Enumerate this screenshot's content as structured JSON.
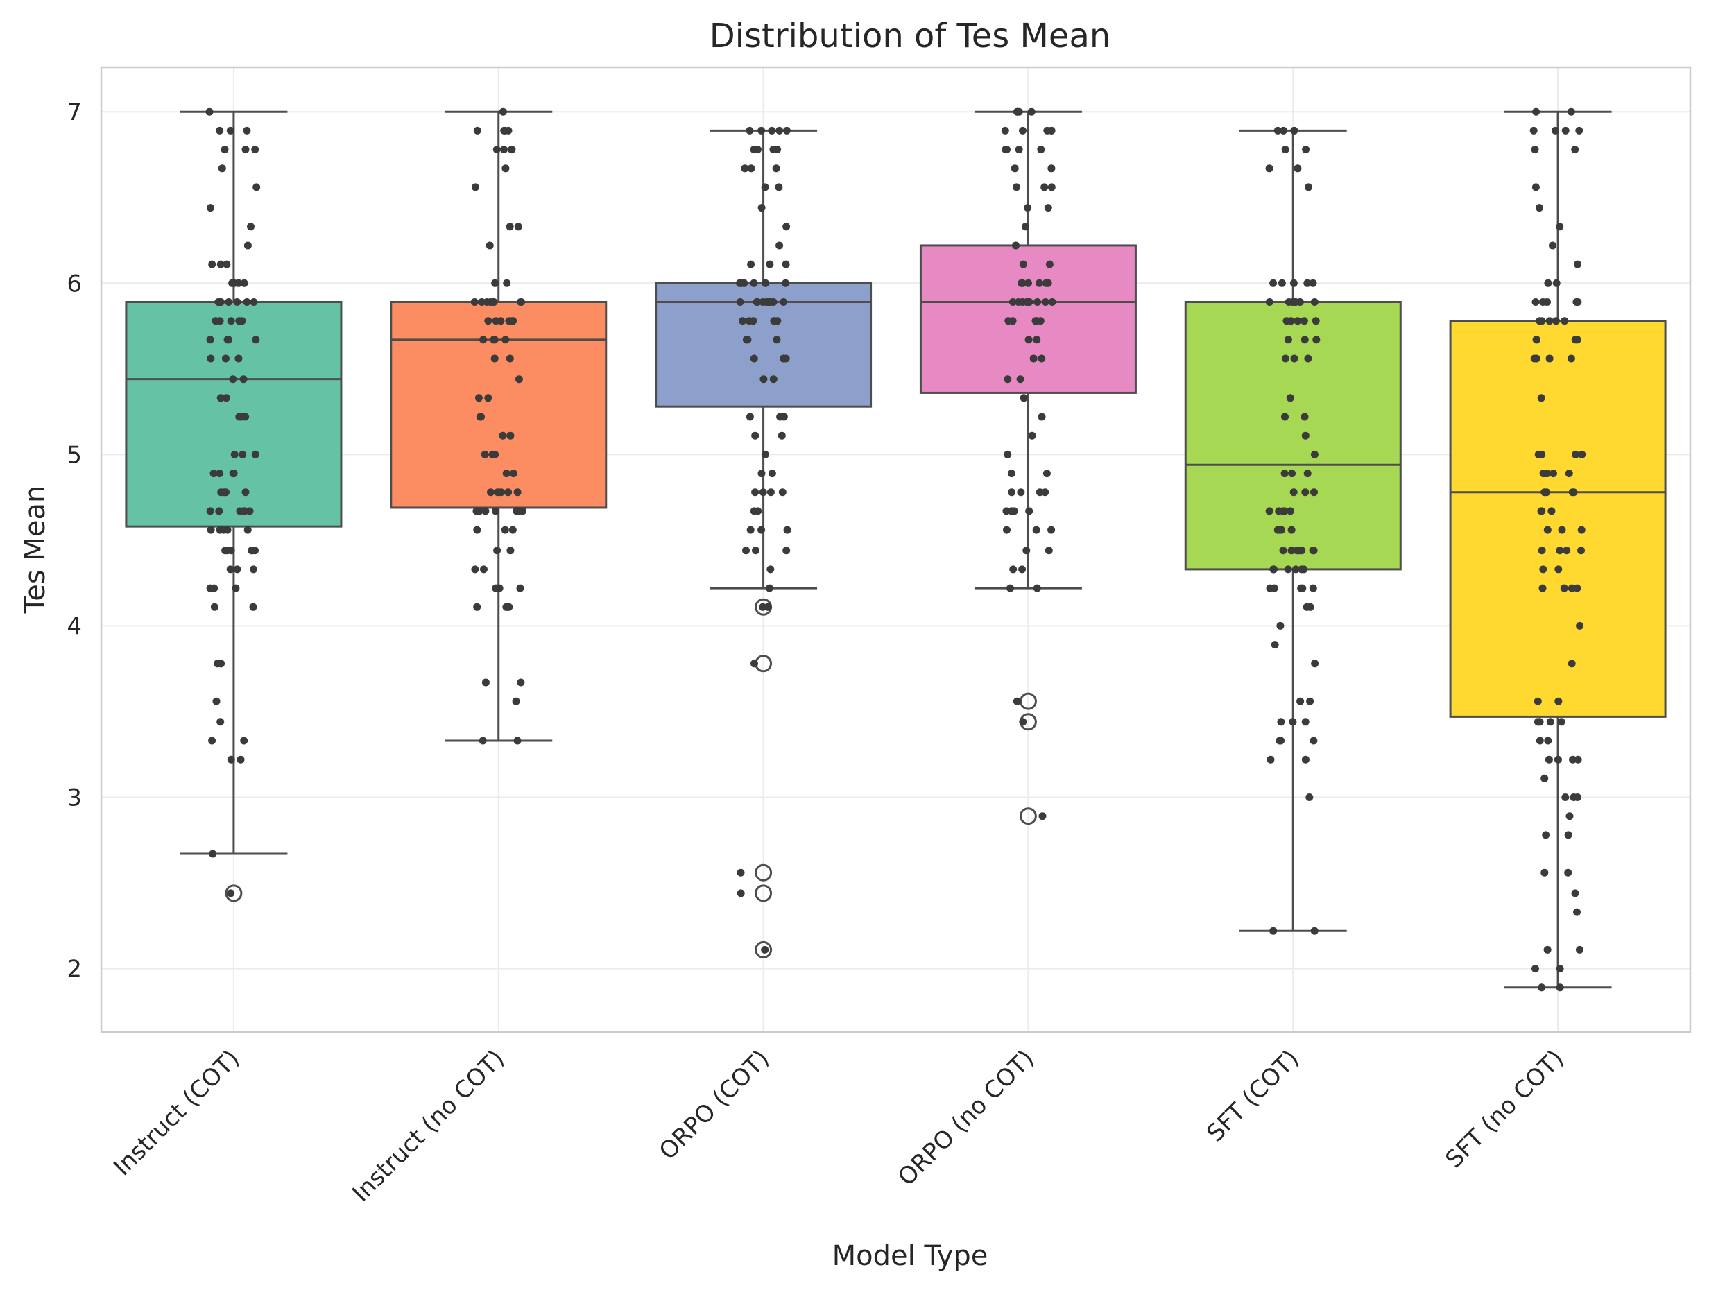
{
  "chart_data": {
    "type": "box",
    "title": "Distribution of Tes Mean",
    "xlabel": "Model Type",
    "ylabel": "Tes Mean",
    "ylim": [
      1.63,
      7.26
    ],
    "yticks": [
      2,
      3,
      4,
      5,
      6,
      7
    ],
    "grid": true,
    "legend": "none",
    "box_edge_color": "#4d4d4d",
    "point_color": "#3b3b3b",
    "categories": [
      "Instruct (COT)",
      "Instruct (no COT)",
      "ORPO (COT)",
      "ORPO (no COT)",
      "SFT (COT)",
      "SFT (no COT)"
    ],
    "series": [
      {
        "category": "Instruct (COT)",
        "color": "#66c2a5",
        "whisker_low": 2.67,
        "q1": 4.58,
        "median": 5.44,
        "q3": 5.89,
        "whisker_high": 7.0,
        "outliers": [
          2.44
        ],
        "points": [
          7.0,
          6.89,
          6.89,
          6.89,
          6.78,
          6.78,
          6.78,
          6.67,
          6.56,
          6.44,
          6.33,
          6.22,
          6.11,
          6.11,
          6.11,
          6.0,
          6.0,
          6.0,
          6.0,
          5.89,
          5.89,
          5.89,
          5.89,
          5.89,
          5.89,
          5.89,
          5.89,
          5.78,
          5.78,
          5.78,
          5.78,
          5.78,
          5.67,
          5.67,
          5.67,
          5.67,
          5.56,
          5.56,
          5.56,
          5.44,
          5.44,
          5.33,
          5.33,
          5.22,
          5.22,
          5.22,
          5.0,
          5.0,
          5.0,
          4.89,
          4.89,
          4.89,
          4.89,
          4.78,
          4.78,
          4.78,
          4.78,
          4.67,
          4.67,
          4.67,
          4.67,
          4.67,
          4.67,
          4.67,
          4.56,
          4.56,
          4.56,
          4.56,
          4.56,
          4.44,
          4.44,
          4.44,
          4.44,
          4.44,
          4.44,
          4.33,
          4.33,
          4.33,
          4.22,
          4.22,
          4.22,
          4.11,
          4.11,
          3.78,
          3.78,
          3.56,
          3.44,
          3.33,
          3.33,
          3.22,
          3.22,
          2.67,
          2.44
        ]
      },
      {
        "category": "Instruct (no COT)",
        "color": "#fc8d62",
        "whisker_low": 3.33,
        "q1": 4.69,
        "median": 5.67,
        "q3": 5.89,
        "whisker_high": 7.0,
        "outliers": [],
        "points": [
          7.0,
          6.89,
          6.89,
          6.89,
          6.89,
          6.78,
          6.78,
          6.78,
          6.78,
          6.67,
          6.56,
          6.33,
          6.33,
          6.22,
          6.0,
          6.0,
          5.89,
          5.89,
          5.89,
          5.89,
          5.89,
          5.89,
          5.89,
          5.89,
          5.78,
          5.78,
          5.78,
          5.78,
          5.78,
          5.78,
          5.67,
          5.67,
          5.67,
          5.67,
          5.56,
          5.56,
          5.44,
          5.33,
          5.33,
          5.22,
          5.22,
          5.11,
          5.11,
          5.0,
          5.0,
          5.0,
          4.89,
          4.89,
          4.78,
          4.78,
          4.78,
          4.78,
          4.78,
          4.67,
          4.67,
          4.67,
          4.67,
          4.67,
          4.67,
          4.67,
          4.56,
          4.56,
          4.56,
          4.44,
          4.44,
          4.33,
          4.33,
          4.22,
          4.22,
          4.22,
          4.22,
          4.11,
          4.11,
          4.11,
          4.11,
          3.67,
          3.67,
          3.56,
          3.33,
          3.33
        ]
      },
      {
        "category": "ORPO (COT)",
        "color": "#8da0cb",
        "whisker_low": 4.22,
        "q1": 5.28,
        "median": 5.89,
        "q3": 6.0,
        "whisker_high": 6.89,
        "outliers": [
          4.11,
          3.78,
          2.56,
          2.44,
          2.11
        ],
        "points": [
          6.89,
          6.89,
          6.89,
          6.89,
          6.89,
          6.78,
          6.78,
          6.78,
          6.78,
          6.67,
          6.67,
          6.67,
          6.56,
          6.56,
          6.44,
          6.33,
          6.22,
          6.11,
          6.11,
          6.11,
          6.0,
          6.0,
          6.0,
          6.0,
          6.0,
          6.0,
          5.89,
          5.89,
          5.89,
          5.89,
          5.89,
          5.89,
          5.89,
          5.89,
          5.89,
          5.89,
          5.78,
          5.78,
          5.78,
          5.78,
          5.78,
          5.78,
          5.67,
          5.67,
          5.67,
          5.67,
          5.56,
          5.56,
          5.56,
          5.44,
          5.44,
          5.22,
          5.22,
          5.22,
          5.11,
          5.11,
          5.0,
          4.89,
          4.89,
          4.78,
          4.78,
          4.78,
          4.78,
          4.67,
          4.67,
          4.56,
          4.56,
          4.56,
          4.44,
          4.44,
          4.44,
          4.33,
          4.22,
          4.11,
          4.11,
          3.78,
          2.56,
          2.44,
          2.11
        ]
      },
      {
        "category": "ORPO (no COT)",
        "color": "#e78ac3",
        "whisker_low": 4.22,
        "q1": 5.36,
        "median": 5.89,
        "q3": 6.22,
        "whisker_high": 7.0,
        "outliers": [
          3.56,
          3.44,
          2.89
        ],
        "points": [
          7.0,
          7.0,
          7.0,
          7.0,
          6.89,
          6.89,
          6.89,
          6.89,
          6.89,
          6.78,
          6.78,
          6.78,
          6.78,
          6.67,
          6.67,
          6.56,
          6.56,
          6.56,
          6.44,
          6.44,
          6.33,
          6.22,
          6.11,
          6.11,
          6.0,
          6.0,
          6.0,
          6.0,
          6.0,
          6.0,
          5.89,
          5.89,
          5.89,
          5.89,
          5.89,
          5.89,
          5.89,
          5.89,
          5.89,
          5.89,
          5.78,
          5.78,
          5.78,
          5.78,
          5.78,
          5.67,
          5.67,
          5.56,
          5.56,
          5.44,
          5.44,
          5.33,
          5.22,
          5.11,
          5.0,
          4.89,
          4.89,
          4.78,
          4.78,
          4.78,
          4.78,
          4.67,
          4.67,
          4.67,
          4.67,
          4.56,
          4.56,
          4.56,
          4.44,
          4.44,
          4.33,
          4.33,
          4.22,
          4.22,
          3.56,
          3.44,
          2.89
        ]
      },
      {
        "category": "SFT (COT)",
        "color": "#a6d854",
        "whisker_low": 2.22,
        "q1": 4.33,
        "median": 4.94,
        "q3": 5.89,
        "whisker_high": 6.89,
        "outliers": [],
        "points": [
          6.89,
          6.89,
          6.89,
          6.89,
          6.78,
          6.78,
          6.67,
          6.67,
          6.56,
          6.0,
          6.0,
          6.0,
          6.0,
          6.0,
          5.89,
          5.89,
          5.89,
          5.89,
          5.89,
          5.89,
          5.89,
          5.78,
          5.78,
          5.78,
          5.78,
          5.78,
          5.67,
          5.67,
          5.67,
          5.56,
          5.56,
          5.56,
          5.33,
          5.22,
          5.22,
          5.11,
          5.0,
          4.89,
          4.89,
          4.89,
          4.78,
          4.78,
          4.78,
          4.67,
          4.67,
          4.67,
          4.67,
          4.67,
          4.56,
          4.56,
          4.56,
          4.56,
          4.44,
          4.44,
          4.44,
          4.44,
          4.44,
          4.44,
          4.44,
          4.33,
          4.33,
          4.33,
          4.33,
          4.33,
          4.33,
          4.22,
          4.22,
          4.22,
          4.22,
          4.22,
          4.11,
          4.11,
          4.0,
          3.89,
          3.78,
          3.56,
          3.56,
          3.44,
          3.44,
          3.44,
          3.33,
          3.33,
          3.33,
          3.22,
          3.22,
          3.0,
          2.22,
          2.22
        ]
      },
      {
        "category": "SFT (no COT)",
        "color": "#ffd92f",
        "whisker_low": 1.89,
        "q1": 3.47,
        "median": 4.78,
        "q3": 5.78,
        "whisker_high": 7.0,
        "outliers": [],
        "points": [
          7.0,
          7.0,
          6.89,
          6.89,
          6.89,
          6.89,
          6.78,
          6.78,
          6.56,
          6.44,
          6.33,
          6.22,
          6.11,
          6.0,
          6.0,
          5.89,
          5.89,
          5.89,
          5.89,
          5.89,
          5.78,
          5.78,
          5.78,
          5.78,
          5.78,
          5.67,
          5.67,
          5.67,
          5.67,
          5.56,
          5.56,
          5.56,
          5.56,
          5.33,
          5.0,
          5.0,
          5.0,
          5.0,
          4.89,
          4.89,
          4.89,
          4.89,
          4.89,
          4.78,
          4.78,
          4.78,
          4.78,
          4.67,
          4.67,
          4.67,
          4.56,
          4.56,
          4.56,
          4.44,
          4.44,
          4.44,
          4.44,
          4.33,
          4.33,
          4.22,
          4.22,
          4.22,
          4.22,
          4.0,
          3.78,
          3.56,
          3.56,
          3.44,
          3.44,
          3.44,
          3.44,
          3.33,
          3.33,
          3.22,
          3.22,
          3.22,
          3.22,
          3.11,
          3.0,
          3.0,
          3.0,
          2.89,
          2.78,
          2.78,
          2.56,
          2.56,
          2.44,
          2.33,
          2.11,
          2.11,
          2.0,
          2.0,
          1.89,
          1.89
        ]
      }
    ]
  }
}
